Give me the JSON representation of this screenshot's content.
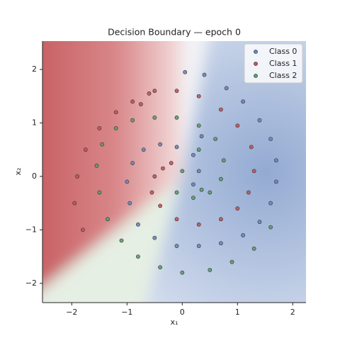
{
  "chart_data": {
    "type": "scatter",
    "title": "Decision Boundary — epoch 0",
    "x_label": "x₁",
    "y_label": "x₂",
    "xlim": [
      -2.53,
      2.24
    ],
    "ylim": [
      -2.36,
      2.53
    ],
    "xticks": [
      {
        "value": -2,
        "label": "−2"
      },
      {
        "value": -1,
        "label": "−1"
      },
      0,
      1,
      2
    ],
    "yticks": [
      {
        "value": -2,
        "label": "−2"
      },
      {
        "value": -1,
        "label": "−1"
      },
      0,
      1,
      2
    ],
    "legend": "upper right",
    "series": [
      {
        "name": "Class 0",
        "color": "#6a86bb",
        "x": [
          0.05,
          0.4,
          0.8,
          1.1,
          1.4,
          1.6,
          1.7,
          1.7,
          1.6,
          1.4,
          1.1,
          0.7,
          0.3,
          -0.1,
          -0.5,
          -0.8,
          -0.95,
          -1.0,
          -0.9,
          -0.7,
          -0.4,
          -0.1,
          0.2,
          0.3,
          0.2,
          0.35
        ],
        "values": [
          1.95,
          1.9,
          1.65,
          1.4,
          1.05,
          0.7,
          0.3,
          -0.1,
          -0.5,
          -0.85,
          -1.1,
          -1.25,
          -1.3,
          -1.3,
          -1.15,
          -0.9,
          -0.5,
          -0.1,
          0.25,
          0.5,
          0.6,
          0.55,
          0.4,
          0.1,
          -0.15,
          0.75
        ]
      },
      {
        "name": "Class 1",
        "color": "#c0565b",
        "x": [
          -1.8,
          -1.95,
          -1.9,
          -1.75,
          -1.5,
          -1.2,
          -0.9,
          -0.5,
          -0.1,
          0.3,
          0.7,
          1.0,
          1.25,
          1.3,
          1.2,
          1.0,
          0.7,
          0.3,
          -0.1,
          -0.4,
          -0.55,
          -0.5,
          -0.35,
          -0.2,
          -0.75,
          -0.6
        ],
        "values": [
          -1.0,
          -0.5,
          0.0,
          0.5,
          0.9,
          1.2,
          1.4,
          1.6,
          1.6,
          1.5,
          1.25,
          0.95,
          0.55,
          0.1,
          -0.3,
          -0.6,
          -0.8,
          -0.9,
          -0.8,
          -0.55,
          -0.3,
          0.0,
          0.15,
          0.25,
          1.35,
          1.55
        ]
      },
      {
        "name": "Class 2",
        "color": "#5e9c6e",
        "x": [
          1.6,
          1.3,
          0.9,
          0.5,
          0.0,
          -0.4,
          -0.8,
          -1.1,
          -1.35,
          -1.5,
          -1.55,
          -1.45,
          -1.2,
          -0.9,
          -0.5,
          -0.1,
          0.3,
          0.6,
          0.75,
          0.7,
          0.5,
          0.2,
          -0.1,
          0.0,
          0.35,
          0.3
        ],
        "values": [
          -0.95,
          -1.35,
          -1.6,
          -1.75,
          -1.8,
          -1.7,
          -1.5,
          -1.2,
          -0.8,
          -0.3,
          0.2,
          0.6,
          0.9,
          1.05,
          1.1,
          1.1,
          0.95,
          0.7,
          0.3,
          -0.05,
          -0.3,
          -0.4,
          -0.3,
          0.1,
          -0.25,
          0.5
        ]
      }
    ]
  }
}
